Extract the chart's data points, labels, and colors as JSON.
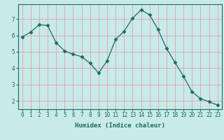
{
  "x": [
    0,
    1,
    2,
    3,
    4,
    5,
    6,
    7,
    8,
    9,
    10,
    11,
    12,
    13,
    14,
    15,
    16,
    17,
    18,
    19,
    20,
    21,
    22,
    23
  ],
  "y": [
    5.9,
    6.2,
    6.65,
    6.6,
    5.55,
    5.05,
    4.85,
    4.7,
    4.3,
    3.7,
    4.45,
    5.75,
    6.25,
    7.05,
    7.55,
    7.25,
    6.35,
    5.2,
    4.35,
    3.5,
    2.55,
    2.15,
    1.95,
    1.75
  ],
  "line_color": "#1a6b5e",
  "marker": "D",
  "marker_size": 2.5,
  "bg_color": "#c8eaea",
  "grid_color": "#e8a0a0",
  "xlabel": "Humidex (Indice chaleur)",
  "xlim": [
    -0.5,
    23.5
  ],
  "ylim": [
    1.5,
    7.9
  ],
  "yticks": [
    2,
    3,
    4,
    5,
    6,
    7
  ],
  "xticks": [
    0,
    1,
    2,
    3,
    4,
    5,
    6,
    7,
    8,
    9,
    10,
    11,
    12,
    13,
    14,
    15,
    16,
    17,
    18,
    19,
    20,
    21,
    22,
    23
  ],
  "tick_color": "#1a6b5e",
  "label_fontsize": 5.5,
  "axis_fontsize": 6.5
}
